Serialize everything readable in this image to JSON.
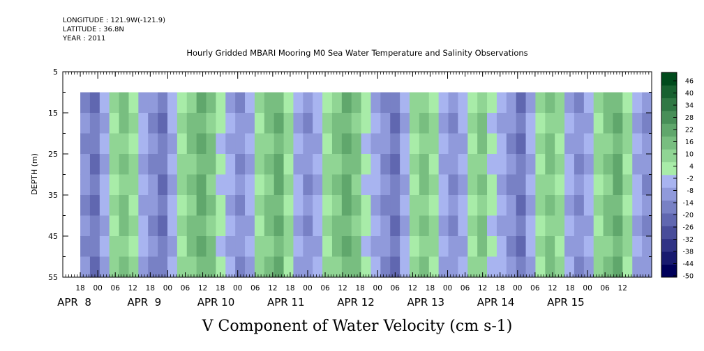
{
  "header": {
    "longitude": "LONGITUDE : 121.9W(-121.9)",
    "latitude": "LATITUDE : 36.8N",
    "year": "YEAR : 2011"
  },
  "chart_data": {
    "type": "heatmap",
    "title": "Hourly Gridded MBARI Mooring M0 Sea Water Temperature and Salinity Observations",
    "xlabel": "",
    "ylabel": "DEPTH (m)",
    "bottom_label": "V Component of Water Velocity (cm s-1)",
    "y_range": [
      5,
      55
    ],
    "y_ticks": [
      "5",
      "15",
      "25",
      "35",
      "45",
      "55"
    ],
    "data_depth_range": [
      10,
      55
    ],
    "x_range_hours": [
      "2011-04-07T12:00",
      "2011-04-15T22:00"
    ],
    "data_time_start": "2011-04-07T18:00",
    "hour_tick_labels": [
      "18",
      "00",
      "06",
      "12",
      "18",
      "00",
      "06",
      "12",
      "18",
      "00",
      "06",
      "12",
      "18",
      "00",
      "06",
      "12",
      "18",
      "00",
      "06",
      "12",
      "18",
      "00",
      "06",
      "12",
      "18",
      "00",
      "06",
      "12",
      "18",
      "00",
      "06",
      "12"
    ],
    "day_labels": [
      "APR  8",
      "APR  9",
      "APR 10",
      "APR 11",
      "APR 12",
      "APR 13",
      "APR 14",
      "APR 15"
    ],
    "colorbar": {
      "levels": [
        -50,
        -44,
        -38,
        -32,
        -26,
        -20,
        -14,
        -8,
        -2,
        4,
        10,
        16,
        22,
        28,
        34,
        40,
        46
      ],
      "tick_labels": [
        "46",
        "40",
        "34",
        "28",
        "22",
        "16",
        "10",
        "4",
        "-2",
        "-8",
        "-14",
        "-20",
        "-26",
        "-32",
        "-38",
        "-44",
        "-50"
      ],
      "low_color": "#00005a",
      "mid_low_color": "#a8b4f0",
      "mid_high_color": "#a8eca8",
      "high_color": "#004a1c"
    },
    "pattern_values_by_time_column": [
      -14,
      -20,
      -8,
      4,
      10,
      4,
      -8,
      -14,
      -20,
      -8,
      4,
      10,
      16,
      10,
      -2,
      -8,
      -14,
      -8,
      4,
      10,
      16,
      4,
      -8,
      -14,
      -8,
      4,
      10,
      16,
      10,
      -2,
      -8,
      -14,
      -20,
      -8,
      4,
      10,
      4,
      -8,
      -14,
      -8,
      4,
      10,
      -2,
      -8,
      -14,
      -20,
      -8,
      4,
      10,
      4,
      -8,
      -14,
      -8,
      4,
      10,
      16,
      4,
      -8,
      -14
    ]
  }
}
